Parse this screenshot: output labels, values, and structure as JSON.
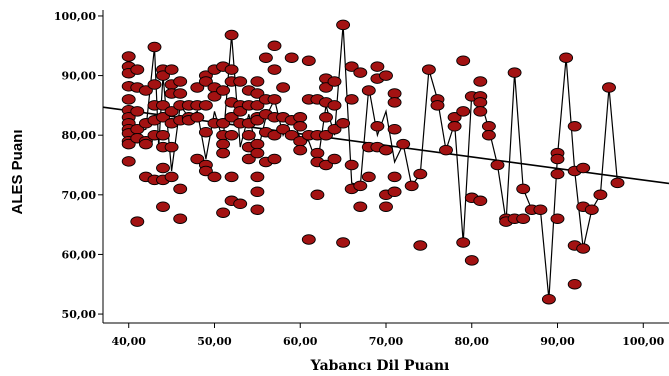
{
  "chart_data": {
    "type": "scatter",
    "xlabel": "Yabancı Dil Puanı",
    "ylabel": "ALES Puanı",
    "xlim": [
      37,
      103
    ],
    "ylim": [
      48.5,
      101
    ],
    "x_ticks": [
      "40,00",
      "50,00",
      "60,00",
      "70,00",
      "80,00",
      "90,00",
      "100,00"
    ],
    "y_ticks": [
      "50,00",
      "60,00",
      "70,00",
      "80,00",
      "90,00",
      "100,00"
    ],
    "x_tick_values": [
      40,
      50,
      60,
      70,
      80,
      90,
      100
    ],
    "y_tick_values": [
      50,
      60,
      70,
      80,
      90,
      100
    ],
    "marker_color": "#a31212",
    "marker_edge": "#000000",
    "line_color": "#000000",
    "regression": {
      "x": [
        37,
        103
      ],
      "y": [
        84.7,
        71.9
      ]
    },
    "series": [
      {
        "points": [
          [
            40,
            93.2
          ],
          [
            40,
            91.5
          ],
          [
            40,
            90.4
          ],
          [
            40,
            88.2
          ],
          [
            40,
            86.0
          ],
          [
            40,
            84.2
          ],
          [
            40,
            83.0
          ],
          [
            40,
            82.0
          ],
          [
            40,
            81.0
          ],
          [
            40,
            80.3
          ],
          [
            40,
            79.0
          ],
          [
            40,
            78.5
          ],
          [
            40,
            75.6
          ],
          [
            41,
            91.0
          ],
          [
            41,
            88.0
          ],
          [
            41,
            84.0
          ],
          [
            41,
            81.0
          ],
          [
            41,
            79.5
          ],
          [
            41,
            65.5
          ],
          [
            42,
            87.5
          ],
          [
            42,
            82.0
          ],
          [
            42,
            79.0
          ],
          [
            42,
            78.5
          ],
          [
            42,
            73.0
          ],
          [
            43,
            94.8
          ],
          [
            43,
            88.5
          ],
          [
            43,
            85.0
          ],
          [
            43,
            82.5
          ],
          [
            43,
            80.0
          ],
          [
            43,
            72.5
          ],
          [
            44,
            91.0
          ],
          [
            44,
            90.0
          ],
          [
            44,
            85.0
          ],
          [
            44,
            83.0
          ],
          [
            44,
            80.0
          ],
          [
            44,
            78.0
          ],
          [
            44,
            74.5
          ],
          [
            44,
            72.5
          ],
          [
            44,
            68.0
          ],
          [
            45,
            91.0
          ],
          [
            45,
            88.5
          ],
          [
            45,
            87.0
          ],
          [
            45,
            84.0
          ],
          [
            45,
            82.0
          ],
          [
            45,
            78.0
          ],
          [
            45,
            73.0
          ],
          [
            46,
            89.0
          ],
          [
            46,
            87.0
          ],
          [
            46,
            85.0
          ],
          [
            46,
            82.5
          ],
          [
            46,
            71.0
          ],
          [
            46,
            66.0
          ],
          [
            47,
            85.0
          ],
          [
            47,
            83.0
          ],
          [
            47,
            82.5
          ],
          [
            48,
            88.0
          ],
          [
            48,
            85.0
          ],
          [
            48,
            83.0
          ],
          [
            48,
            76.0
          ],
          [
            49,
            90.0
          ],
          [
            49,
            89.0
          ],
          [
            49,
            85.0
          ],
          [
            49,
            80.5
          ],
          [
            49,
            75.0
          ],
          [
            49,
            74.0
          ],
          [
            50,
            91.0
          ],
          [
            50,
            88.0
          ],
          [
            50,
            86.5
          ],
          [
            50,
            82.0
          ],
          [
            50,
            73.0
          ],
          [
            51,
            91.5
          ],
          [
            51,
            87.5
          ],
          [
            51,
            82.0
          ],
          [
            51,
            80.0
          ],
          [
            51,
            78.5
          ],
          [
            51,
            77.0
          ],
          [
            51,
            67.0
          ],
          [
            52,
            96.8
          ],
          [
            52,
            91.0
          ],
          [
            52,
            89.0
          ],
          [
            52,
            85.5
          ],
          [
            52,
            83.0
          ],
          [
            52,
            80.0
          ],
          [
            52,
            73.0
          ],
          [
            52,
            69.0
          ],
          [
            53,
            89.0
          ],
          [
            53,
            85.0
          ],
          [
            53,
            84.0
          ],
          [
            53,
            82.0
          ],
          [
            53,
            68.5
          ],
          [
            54,
            87.5
          ],
          [
            54,
            85.0
          ],
          [
            54,
            82.0
          ],
          [
            54,
            80.0
          ],
          [
            54,
            78.0
          ],
          [
            54,
            76.0
          ],
          [
            55,
            89.0
          ],
          [
            55,
            87.0
          ],
          [
            55,
            85.0
          ],
          [
            55,
            83.0
          ],
          [
            55,
            82.5
          ],
          [
            55,
            78.5
          ],
          [
            55,
            77.0
          ],
          [
            55,
            73.0
          ],
          [
            55,
            70.5
          ],
          [
            55,
            67.5
          ],
          [
            56,
            93.0
          ],
          [
            56,
            86.0
          ],
          [
            56,
            83.5
          ],
          [
            56,
            80.5
          ],
          [
            56,
            75.5
          ],
          [
            57,
            95.0
          ],
          [
            57,
            91.0
          ],
          [
            57,
            86.0
          ],
          [
            57,
            83.0
          ],
          [
            57,
            80.0
          ],
          [
            57,
            76.0
          ],
          [
            58,
            88.0
          ],
          [
            58,
            83.0
          ],
          [
            58,
            81.0
          ],
          [
            59,
            93.0
          ],
          [
            59,
            82.5
          ],
          [
            59,
            80.0
          ],
          [
            60,
            83.0
          ],
          [
            60,
            81.5
          ],
          [
            60,
            79.0
          ],
          [
            60,
            77.5
          ],
          [
            61,
            92.5
          ],
          [
            61,
            86.0
          ],
          [
            61,
            80.0
          ],
          [
            61,
            62.5
          ],
          [
            62,
            86.0
          ],
          [
            62,
            80.0
          ],
          [
            62,
            77.0
          ],
          [
            62,
            75.5
          ],
          [
            62,
            70.0
          ],
          [
            63,
            89.5
          ],
          [
            63,
            88.0
          ],
          [
            63,
            85.5
          ],
          [
            63,
            83.0
          ],
          [
            63,
            80.0
          ],
          [
            63,
            75.0
          ],
          [
            64,
            89.0
          ],
          [
            64,
            85.0
          ],
          [
            64,
            81.0
          ],
          [
            64,
            76.0
          ],
          [
            65,
            98.5
          ],
          [
            65,
            82.0
          ],
          [
            65,
            62.0
          ],
          [
            66,
            91.5
          ],
          [
            66,
            86.0
          ],
          [
            66,
            75.0
          ],
          [
            66,
            71.0
          ],
          [
            67,
            90.5
          ],
          [
            67,
            71.5
          ],
          [
            67,
            68.0
          ],
          [
            68,
            87.5
          ],
          [
            68,
            78.0
          ],
          [
            68,
            73.0
          ],
          [
            69,
            91.5
          ],
          [
            69,
            89.5
          ],
          [
            69,
            81.5
          ],
          [
            69,
            78.0
          ],
          [
            70,
            90.0
          ],
          [
            70,
            77.5
          ],
          [
            70,
            70.0
          ],
          [
            70,
            68.0
          ],
          [
            71,
            87.0
          ],
          [
            71,
            85.5
          ],
          [
            71,
            81.0
          ],
          [
            71,
            73.0
          ],
          [
            71,
            70.5
          ],
          [
            72,
            78.5
          ],
          [
            73,
            71.5
          ],
          [
            74,
            73.5
          ],
          [
            74,
            61.5
          ],
          [
            75,
            91.0
          ],
          [
            76,
            86.0
          ],
          [
            76,
            85.0
          ],
          [
            77,
            77.5
          ],
          [
            78,
            83.0
          ],
          [
            78,
            81.5
          ],
          [
            79,
            92.5
          ],
          [
            79,
            84.0
          ],
          [
            79,
            62.0
          ],
          [
            80,
            86.5
          ],
          [
            80,
            69.5
          ],
          [
            80,
            59.0
          ],
          [
            81,
            89.0
          ],
          [
            81,
            86.5
          ],
          [
            81,
            85.5
          ],
          [
            81,
            84.0
          ],
          [
            81,
            69.0
          ],
          [
            82,
            81.5
          ],
          [
            82,
            80.0
          ],
          [
            83,
            75.0
          ],
          [
            84,
            66.0
          ],
          [
            84,
            65.5
          ],
          [
            85,
            90.5
          ],
          [
            85,
            66.0
          ],
          [
            86,
            71.0
          ],
          [
            86,
            66.0
          ],
          [
            87,
            67.5
          ],
          [
            88,
            67.5
          ],
          [
            89,
            52.5
          ],
          [
            90,
            77.0
          ],
          [
            90,
            76.0
          ],
          [
            90,
            73.5
          ],
          [
            90,
            66.0
          ],
          [
            91,
            93.0
          ],
          [
            92,
            81.5
          ],
          [
            92,
            74.0
          ],
          [
            92,
            61.5
          ],
          [
            92,
            55.0
          ],
          [
            93,
            74.5
          ],
          [
            93,
            68.0
          ],
          [
            93,
            61.0
          ],
          [
            94,
            67.5
          ],
          [
            95,
            70.0
          ],
          [
            96,
            88.0
          ],
          [
            97,
            72.0
          ]
        ],
        "line": [
          [
            40,
            81.5
          ],
          [
            41,
            80.5
          ],
          [
            42,
            81.0
          ],
          [
            43,
            94.8
          ],
          [
            43.5,
            78.0
          ],
          [
            44,
            90.0
          ],
          [
            45,
            74.0
          ],
          [
            46,
            85.0
          ],
          [
            47,
            83.0
          ],
          [
            48,
            84.0
          ],
          [
            49,
            76.0
          ],
          [
            50,
            84.0
          ],
          [
            51,
            79.0
          ],
          [
            52,
            96.8
          ],
          [
            53,
            78.0
          ],
          [
            54,
            83.5
          ],
          [
            55,
            77.0
          ],
          [
            56,
            83.0
          ],
          [
            57,
            86.0
          ],
          [
            58,
            80.0
          ],
          [
            59,
            83.0
          ],
          [
            60,
            79.5
          ],
          [
            61,
            79.0
          ],
          [
            62,
            75.0
          ],
          [
            63,
            85.0
          ],
          [
            64,
            80.0
          ],
          [
            65,
            98.5
          ],
          [
            66,
            72.0
          ],
          [
            67,
            71.5
          ],
          [
            68,
            88.0
          ],
          [
            69,
            80.0
          ],
          [
            70,
            84.0
          ],
          [
            71,
            75.5
          ],
          [
            72,
            78.5
          ],
          [
            73,
            71.5
          ],
          [
            74,
            73.5
          ],
          [
            75,
            91.0
          ],
          [
            76,
            86.0
          ],
          [
            77,
            77.5
          ],
          [
            78,
            82.0
          ],
          [
            79,
            62.0
          ],
          [
            80,
            87.0
          ],
          [
            81,
            86.0
          ],
          [
            82,
            81.0
          ],
          [
            83,
            75.0
          ],
          [
            84,
            65.5
          ],
          [
            85,
            90.5
          ],
          [
            86,
            71.0
          ],
          [
            87,
            67.5
          ],
          [
            88,
            67.5
          ],
          [
            89,
            52.5
          ],
          [
            90,
            76.5
          ],
          [
            91,
            93.0
          ],
          [
            92,
            74.0
          ],
          [
            93,
            61.0
          ],
          [
            94,
            67.5
          ],
          [
            95,
            70.0
          ],
          [
            96,
            88.0
          ],
          [
            97,
            72.0
          ]
        ]
      }
    ]
  }
}
